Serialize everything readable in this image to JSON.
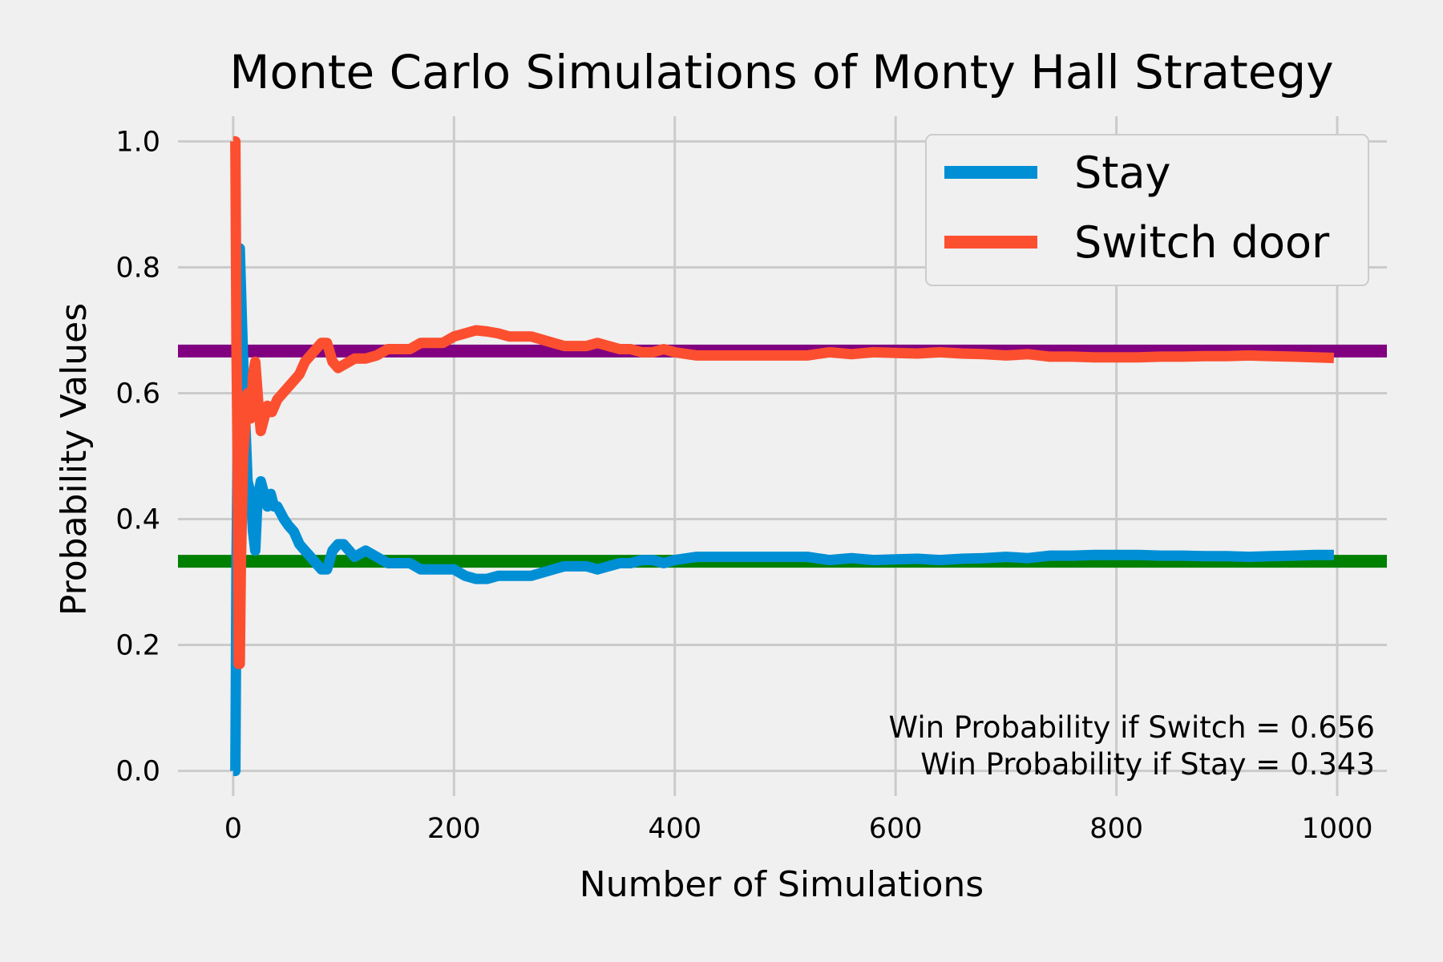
{
  "chart_data": {
    "type": "line",
    "title": "Monte Carlo Simulations of Monty Hall Strategy",
    "xlabel": "Number of Simulations",
    "ylabel": "Probability Values",
    "xlim": [
      -50,
      1045
    ],
    "ylim": [
      -0.04,
      1.04
    ],
    "xticks": [
      0,
      200,
      400,
      600,
      800,
      1000
    ],
    "xtick_labels": [
      "0",
      "200",
      "400",
      "600",
      "800",
      "1000"
    ],
    "yticks": [
      0.0,
      0.2,
      0.4,
      0.6,
      0.8,
      1.0
    ],
    "ytick_labels": [
      "0.0",
      "0.2",
      "0.4",
      "0.6",
      "0.8",
      "1.0"
    ],
    "grid": true,
    "legend_position": "top-right",
    "reference_lines": [
      {
        "y": 0.667,
        "color": "#800080"
      },
      {
        "y": 0.333,
        "color": "#008000"
      }
    ],
    "series": [
      {
        "name": "Stay",
        "color": "#008fd5",
        "points": [
          [
            0,
            0
          ],
          [
            2,
            0
          ],
          [
            3,
            0.33
          ],
          [
            4,
            0.5
          ],
          [
            6,
            0.83
          ],
          [
            8,
            0.71
          ],
          [
            10,
            0.6
          ],
          [
            13,
            0.46
          ],
          [
            16,
            0.44
          ],
          [
            18,
            0.38
          ],
          [
            20,
            0.35
          ],
          [
            22,
            0.43
          ],
          [
            25,
            0.46
          ],
          [
            28,
            0.44
          ],
          [
            31,
            0.42
          ],
          [
            34,
            0.44
          ],
          [
            37,
            0.42
          ],
          [
            40,
            0.42
          ],
          [
            43,
            0.41
          ],
          [
            46,
            0.4
          ],
          [
            50,
            0.39
          ],
          [
            55,
            0.38
          ],
          [
            60,
            0.36
          ],
          [
            65,
            0.35
          ],
          [
            70,
            0.34
          ],
          [
            75,
            0.33
          ],
          [
            80,
            0.32
          ],
          [
            85,
            0.32
          ],
          [
            90,
            0.35
          ],
          [
            95,
            0.36
          ],
          [
            100,
            0.36
          ],
          [
            105,
            0.35
          ],
          [
            110,
            0.34
          ],
          [
            120,
            0.35
          ],
          [
            130,
            0.34
          ],
          [
            140,
            0.33
          ],
          [
            150,
            0.33
          ],
          [
            160,
            0.33
          ],
          [
            170,
            0.32
          ],
          [
            180,
            0.32
          ],
          [
            190,
            0.32
          ],
          [
            200,
            0.32
          ],
          [
            210,
            0.31
          ],
          [
            220,
            0.305
          ],
          [
            230,
            0.305
          ],
          [
            240,
            0.31
          ],
          [
            250,
            0.31
          ],
          [
            260,
            0.31
          ],
          [
            270,
            0.31
          ],
          [
            280,
            0.315
          ],
          [
            290,
            0.32
          ],
          [
            300,
            0.325
          ],
          [
            310,
            0.325
          ],
          [
            320,
            0.325
          ],
          [
            330,
            0.32
          ],
          [
            340,
            0.325
          ],
          [
            350,
            0.33
          ],
          [
            360,
            0.33
          ],
          [
            370,
            0.335
          ],
          [
            380,
            0.335
          ],
          [
            390,
            0.33
          ],
          [
            400,
            0.335
          ],
          [
            420,
            0.34
          ],
          [
            440,
            0.34
          ],
          [
            460,
            0.34
          ],
          [
            480,
            0.34
          ],
          [
            500,
            0.34
          ],
          [
            520,
            0.34
          ],
          [
            540,
            0.335
          ],
          [
            560,
            0.338
          ],
          [
            580,
            0.335
          ],
          [
            600,
            0.336
          ],
          [
            620,
            0.337
          ],
          [
            640,
            0.335
          ],
          [
            660,
            0.337
          ],
          [
            680,
            0.338
          ],
          [
            700,
            0.34
          ],
          [
            720,
            0.338
          ],
          [
            740,
            0.342
          ],
          [
            760,
            0.342
          ],
          [
            780,
            0.343
          ],
          [
            800,
            0.343
          ],
          [
            820,
            0.343
          ],
          [
            840,
            0.342
          ],
          [
            860,
            0.342
          ],
          [
            880,
            0.341
          ],
          [
            900,
            0.341
          ],
          [
            920,
            0.34
          ],
          [
            940,
            0.341
          ],
          [
            960,
            0.342
          ],
          [
            980,
            0.343
          ],
          [
            997,
            0.343
          ]
        ]
      },
      {
        "name": "Switch door",
        "color": "#fc4f30",
        "points": [
          [
            0,
            1
          ],
          [
            2,
            1
          ],
          [
            3,
            0.67
          ],
          [
            4,
            0.5
          ],
          [
            5,
            0.17
          ],
          [
            6,
            0.17
          ],
          [
            7,
            0.33
          ],
          [
            9,
            0.5
          ],
          [
            11,
            0.55
          ],
          [
            13,
            0.6
          ],
          [
            16,
            0.56
          ],
          [
            18,
            0.63
          ],
          [
            20,
            0.65
          ],
          [
            23,
            0.58
          ],
          [
            25,
            0.54
          ],
          [
            28,
            0.56
          ],
          [
            31,
            0.58
          ],
          [
            35,
            0.57
          ],
          [
            40,
            0.59
          ],
          [
            45,
            0.6
          ],
          [
            50,
            0.61
          ],
          [
            55,
            0.62
          ],
          [
            60,
            0.63
          ],
          [
            65,
            0.65
          ],
          [
            70,
            0.66
          ],
          [
            75,
            0.67
          ],
          [
            80,
            0.68
          ],
          [
            85,
            0.68
          ],
          [
            90,
            0.65
          ],
          [
            95,
            0.64
          ],
          [
            100,
            0.645
          ],
          [
            105,
            0.65
          ],
          [
            110,
            0.655
          ],
          [
            120,
            0.655
          ],
          [
            130,
            0.66
          ],
          [
            140,
            0.67
          ],
          [
            150,
            0.67
          ],
          [
            160,
            0.67
          ],
          [
            170,
            0.68
          ],
          [
            180,
            0.68
          ],
          [
            190,
            0.68
          ],
          [
            200,
            0.69
          ],
          [
            210,
            0.695
          ],
          [
            220,
            0.7
          ],
          [
            230,
            0.698
          ],
          [
            240,
            0.695
          ],
          [
            250,
            0.69
          ],
          [
            260,
            0.69
          ],
          [
            270,
            0.69
          ],
          [
            280,
            0.685
          ],
          [
            290,
            0.68
          ],
          [
            300,
            0.675
          ],
          [
            310,
            0.675
          ],
          [
            320,
            0.675
          ],
          [
            330,
            0.68
          ],
          [
            340,
            0.675
          ],
          [
            350,
            0.67
          ],
          [
            360,
            0.67
          ],
          [
            370,
            0.665
          ],
          [
            380,
            0.665
          ],
          [
            390,
            0.67
          ],
          [
            400,
            0.665
          ],
          [
            420,
            0.66
          ],
          [
            440,
            0.66
          ],
          [
            460,
            0.66
          ],
          [
            480,
            0.66
          ],
          [
            500,
            0.66
          ],
          [
            520,
            0.66
          ],
          [
            540,
            0.665
          ],
          [
            560,
            0.662
          ],
          [
            580,
            0.665
          ],
          [
            600,
            0.664
          ],
          [
            620,
            0.663
          ],
          [
            640,
            0.665
          ],
          [
            660,
            0.663
          ],
          [
            680,
            0.662
          ],
          [
            700,
            0.66
          ],
          [
            720,
            0.662
          ],
          [
            740,
            0.658
          ],
          [
            760,
            0.658
          ],
          [
            780,
            0.657
          ],
          [
            800,
            0.657
          ],
          [
            820,
            0.657
          ],
          [
            840,
            0.658
          ],
          [
            860,
            0.658
          ],
          [
            880,
            0.659
          ],
          [
            900,
            0.659
          ],
          [
            920,
            0.66
          ],
          [
            940,
            0.659
          ],
          [
            960,
            0.658
          ],
          [
            980,
            0.657
          ],
          [
            997,
            0.656
          ]
        ]
      }
    ],
    "annotations": [
      "Win Probability if Switch = 0.656",
      "Win Probability if Stay = 0.343"
    ]
  }
}
